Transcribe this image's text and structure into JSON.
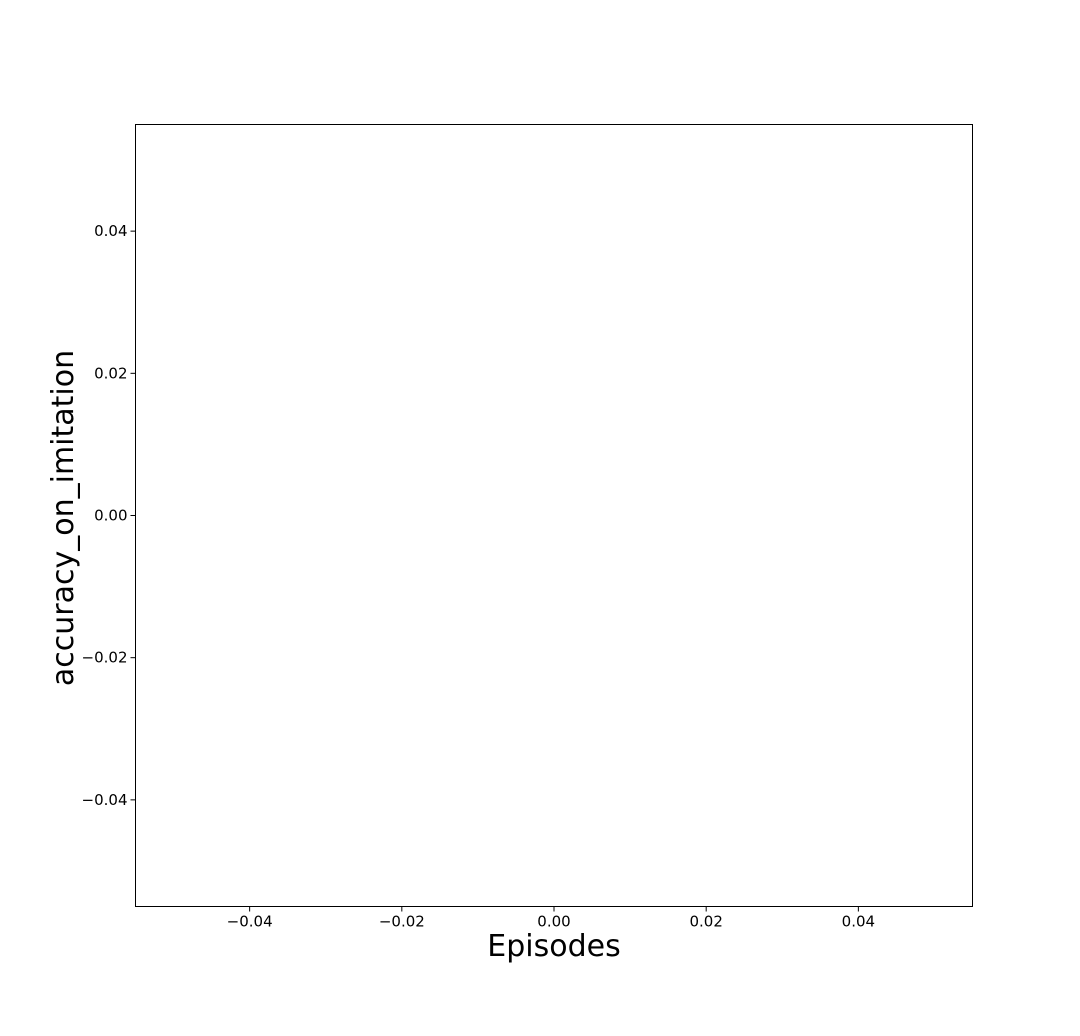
{
  "chart_data": {
    "type": "line",
    "title": "",
    "xlabel": "Episodes",
    "ylabel": "accuracy_on_imitation",
    "xlim": [
      -0.055,
      0.055
    ],
    "ylim": [
      -0.055,
      0.055
    ],
    "xticks": [
      -0.04,
      -0.02,
      0.0,
      0.02,
      0.04
    ],
    "xtick_labels": [
      "−0.04",
      "−0.02",
      "0.00",
      "0.02",
      "0.04"
    ],
    "yticks": [
      -0.04,
      -0.02,
      0.0,
      0.02,
      0.04
    ],
    "ytick_labels": [
      "−0.04",
      "−0.02",
      "0.00",
      "0.02",
      "0.04"
    ],
    "grid": false,
    "series": []
  }
}
